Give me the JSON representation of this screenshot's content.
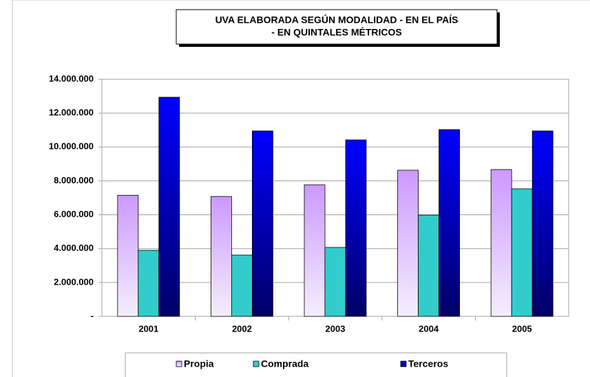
{
  "chart_data": {
    "type": "bar",
    "title": [
      "UVA ELABORADA SEGÚN MODALIDAD  - EN EL PAÍS",
      "- EN QUINTALES MÉTRICOS"
    ],
    "categories": [
      "2001",
      "2002",
      "2003",
      "2004",
      "2005"
    ],
    "series": [
      {
        "name": "Propia",
        "color": "#cc99ff",
        "values": [
          7150000,
          7080000,
          7770000,
          8630000,
          8670000
        ]
      },
      {
        "name": "Comprada",
        "color": "#33cccc",
        "values": [
          3900000,
          3620000,
          4070000,
          5980000,
          7530000
        ]
      },
      {
        "name": "Terceros",
        "color": "#0000ff",
        "values": [
          12940000,
          10950000,
          10420000,
          11030000,
          10950000
        ]
      }
    ],
    "ylim": [
      0,
      14000000
    ],
    "yticks": [
      {
        "value": 0,
        "label": "-"
      },
      {
        "value": 2000000,
        "label": "2.000.000"
      },
      {
        "value": 4000000,
        "label": "4.000.000"
      },
      {
        "value": 6000000,
        "label": "6.000.000"
      },
      {
        "value": 8000000,
        "label": "8.000.000"
      },
      {
        "value": 10000000,
        "label": "10.000.000"
      },
      {
        "value": 12000000,
        "label": "12.000.000"
      },
      {
        "value": 14000000,
        "label": "14.000.000"
      }
    ],
    "grid": true
  }
}
